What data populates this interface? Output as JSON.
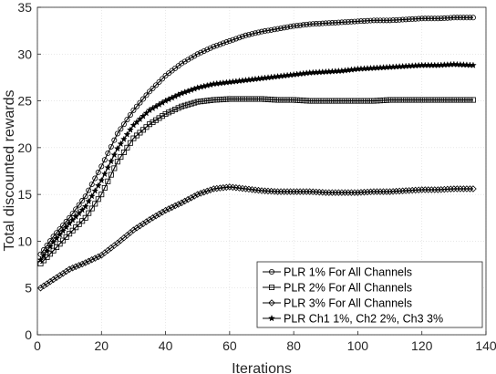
{
  "chart_data": {
    "type": "line",
    "title": "",
    "xlabel": "Iterations",
    "ylabel": "Total discounted rewards",
    "xlim": [
      0,
      140
    ],
    "ylim": [
      0,
      35
    ],
    "xticks": [
      0,
      20,
      40,
      60,
      80,
      100,
      120,
      140
    ],
    "yticks": [
      0,
      5,
      10,
      15,
      20,
      25,
      30,
      35
    ],
    "grid": "on",
    "legend_position": "bottom-right",
    "line_color": "#000000",
    "series": [
      {
        "name": "PLR 1% For All Channels",
        "marker": "circle",
        "x": [
          1,
          5,
          10,
          15,
          20,
          25,
          30,
          35,
          40,
          45,
          50,
          55,
          60,
          65,
          70,
          75,
          80,
          85,
          90,
          95,
          100,
          105,
          110,
          115,
          120,
          125,
          130,
          136
        ],
        "y": [
          8.6,
          10.5,
          12.5,
          14.8,
          18.0,
          21.5,
          24.0,
          26.0,
          27.7,
          29.0,
          30.0,
          30.8,
          31.4,
          32.0,
          32.4,
          32.7,
          33.0,
          33.2,
          33.3,
          33.4,
          33.5,
          33.6,
          33.6,
          33.7,
          33.8,
          33.8,
          33.9,
          33.9
        ]
      },
      {
        "name": "PLR 2% For All Channels",
        "marker": "square",
        "x": [
          1,
          5,
          10,
          15,
          20,
          25,
          30,
          35,
          40,
          45,
          50,
          55,
          60,
          65,
          70,
          75,
          80,
          85,
          90,
          95,
          100,
          105,
          110,
          115,
          120,
          125,
          130,
          136
        ],
        "y": [
          7.6,
          9.0,
          10.8,
          12.5,
          15.0,
          18.5,
          21.0,
          22.5,
          23.6,
          24.4,
          24.9,
          25.1,
          25.2,
          25.2,
          25.2,
          25.1,
          25.1,
          25.0,
          25.0,
          25.0,
          25.0,
          25.0,
          25.1,
          25.1,
          25.1,
          25.1,
          25.1,
          25.1
        ]
      },
      {
        "name": "PLR 3% For All Channels",
        "marker": "diamond",
        "x": [
          1,
          5,
          10,
          15,
          20,
          25,
          30,
          35,
          40,
          45,
          50,
          55,
          60,
          65,
          70,
          75,
          80,
          85,
          90,
          95,
          100,
          105,
          110,
          115,
          120,
          125,
          130,
          136
        ],
        "y": [
          5.0,
          5.9,
          7.0,
          7.7,
          8.5,
          9.8,
          11.2,
          12.3,
          13.3,
          14.1,
          15.0,
          15.6,
          15.8,
          15.6,
          15.4,
          15.3,
          15.3,
          15.3,
          15.2,
          15.2,
          15.2,
          15.3,
          15.3,
          15.4,
          15.5,
          15.5,
          15.6,
          15.6
        ]
      },
      {
        "name": "PLR Ch1 1%, Ch2 2%, Ch3 3%",
        "marker": "star",
        "x": [
          1,
          5,
          10,
          15,
          20,
          25,
          30,
          35,
          40,
          45,
          50,
          55,
          60,
          65,
          70,
          75,
          80,
          85,
          90,
          95,
          100,
          105,
          110,
          115,
          120,
          125,
          130,
          136
        ],
        "y": [
          8.0,
          9.9,
          11.9,
          13.7,
          16.5,
          19.9,
          22.4,
          24.0,
          25.0,
          25.8,
          26.4,
          26.8,
          27.0,
          27.2,
          27.4,
          27.6,
          27.8,
          28.0,
          28.1,
          28.2,
          28.4,
          28.5,
          28.6,
          28.7,
          28.8,
          28.8,
          28.9,
          28.8
        ]
      }
    ]
  }
}
